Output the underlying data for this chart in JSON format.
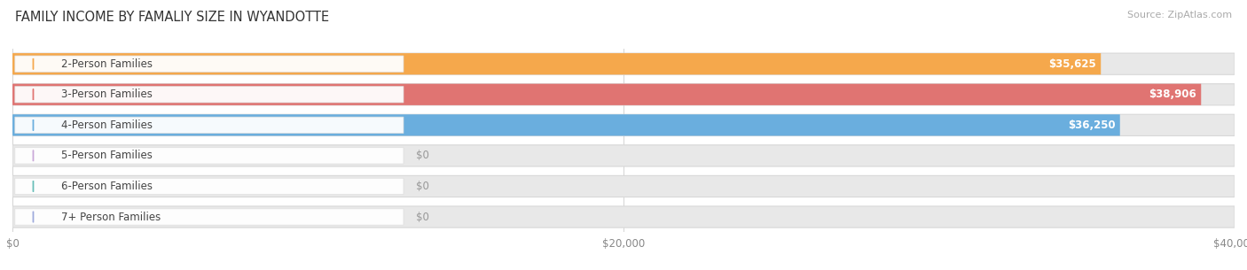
{
  "title": "FAMILY INCOME BY FAMALIY SIZE IN WYANDOTTE",
  "source": "Source: ZipAtlas.com",
  "categories": [
    "2-Person Families",
    "3-Person Families",
    "4-Person Families",
    "5-Person Families",
    "6-Person Families",
    "7+ Person Families"
  ],
  "values": [
    35625,
    38906,
    36250,
    0,
    0,
    0
  ],
  "bar_colors": [
    "#F5A84C",
    "#E07472",
    "#6AAEDE",
    "#C9A8D8",
    "#68BEB8",
    "#9EAADC"
  ],
  "xlim": [
    0,
    40000
  ],
  "xticks": [
    0,
    20000,
    40000
  ],
  "xtick_labels": [
    "$0",
    "$20,000",
    "$40,000"
  ],
  "value_labels": [
    "$35,625",
    "$38,906",
    "$36,250",
    "$0",
    "$0",
    "$0"
  ],
  "background_color": "#ffffff",
  "track_color": "#e8e8e8",
  "track_outline": "#d8d8d8",
  "pill_color": "#ffffff",
  "title_fontsize": 10.5,
  "label_fontsize": 8.5,
  "value_fontsize": 8.5
}
